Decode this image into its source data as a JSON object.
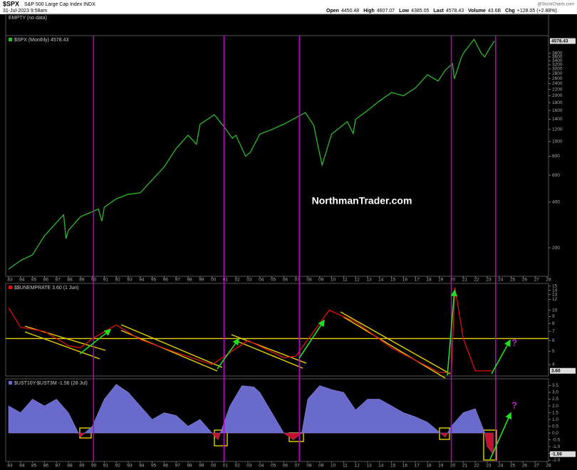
{
  "header": {
    "symbol": "$SPX",
    "name": "S&P 500 Large Cap Index INDX",
    "date": "31-Jul-2023 9:58am",
    "quote": [
      {
        "label": "Open",
        "value": "4450.48"
      },
      {
        "label": "High",
        "value": "4607.07"
      },
      {
        "label": "Low",
        "value": "4385.05"
      },
      {
        "label": "Last",
        "value": "4578.43"
      },
      {
        "label": "Volume",
        "value": "43.6B"
      },
      {
        "label": "Chg",
        "value": "+128.05 (+2.88%)"
      }
    ],
    "source": "@StockCharts.com"
  },
  "empty_panel": "EMPTY (no data)",
  "watermark": "NorthmanTrader.com",
  "xlim": [
    1982.76,
    2028.12
  ],
  "event_lines": [
    1990.1,
    2001.0,
    2007.3,
    2020.0,
    2023.7
  ],
  "xticks": [
    {
      "value": 1983,
      "label": "83"
    },
    {
      "value": 1984,
      "label": "84"
    },
    {
      "value": 1985,
      "label": "85"
    },
    {
      "value": 1986,
      "label": "86"
    },
    {
      "value": 1987,
      "label": "87"
    },
    {
      "value": 1988,
      "label": "88"
    },
    {
      "value": 1989,
      "label": "89"
    },
    {
      "value": 1990,
      "label": "90"
    },
    {
      "value": 1991,
      "label": "91"
    },
    {
      "value": 1992,
      "label": "92"
    },
    {
      "value": 1993,
      "label": "93"
    },
    {
      "value": 1994,
      "label": "94"
    },
    {
      "value": 1995,
      "label": "95"
    },
    {
      "value": 1996,
      "label": "96"
    },
    {
      "value": 1997,
      "label": "97"
    },
    {
      "value": 1998,
      "label": "98"
    },
    {
      "value": 1999,
      "label": "99"
    },
    {
      "value": 2000,
      "label": "00"
    },
    {
      "value": 2001,
      "label": "01"
    },
    {
      "value": 2002,
      "label": "02"
    },
    {
      "value": 2003,
      "label": "03"
    },
    {
      "value": 2004,
      "label": "04"
    },
    {
      "value": 2005,
      "label": "05"
    },
    {
      "value": 2006,
      "label": "06"
    },
    {
      "value": 2007,
      "label": "07"
    },
    {
      "value": 2008,
      "label": "08"
    },
    {
      "value": 2009,
      "label": "09"
    },
    {
      "value": 2010,
      "label": "10"
    },
    {
      "value": 2011,
      "label": "11"
    },
    {
      "value": 2012,
      "label": "12"
    },
    {
      "value": 2013,
      "label": "13"
    },
    {
      "value": 2014,
      "label": "14"
    },
    {
      "value": 2015,
      "label": "15"
    },
    {
      "value": 2016,
      "label": "16"
    },
    {
      "value": 2017,
      "label": "17"
    },
    {
      "value": 2018,
      "label": "18"
    },
    {
      "value": 2019,
      "label": "19"
    },
    {
      "value": 2020,
      "label": "20"
    },
    {
      "value": 2021,
      "label": "21"
    },
    {
      "value": 2022,
      "label": "22"
    },
    {
      "value": 2023,
      "label": "23"
    },
    {
      "value": 2024,
      "label": "24"
    },
    {
      "value": 2025,
      "label": "25"
    },
    {
      "value": 2026,
      "label": "26"
    },
    {
      "value": 2027,
      "label": "27"
    },
    {
      "value": 2028,
      "label": "28"
    }
  ],
  "chart_data": [
    {
      "type": "line",
      "title": "$SPX (Monthly) 4578.43",
      "log_scale": true,
      "color": "#2eb82e",
      "x": [
        1983,
        1984,
        1985,
        1986,
        1987.6,
        1987.8,
        1988,
        1989,
        1990.5,
        1990.8,
        1991,
        1992,
        1993,
        1994,
        1995,
        1996,
        1997,
        1998,
        1998.7,
        1999,
        2000.2,
        2001,
        2001.7,
        2002,
        2002.8,
        2003.2,
        2004,
        2005,
        2006,
        2007.8,
        2008.5,
        2008.9,
        2009.2,
        2010,
        2011.3,
        2011.8,
        2012,
        2013,
        2014,
        2015,
        2016,
        2017,
        2018,
        2018.9,
        2019.5,
        2020.1,
        2020.25,
        2020.8,
        2021,
        2021.9,
        2022.5,
        2022.8,
        2023.2,
        2023.6
      ],
      "values": [
        145,
        165,
        180,
        240,
        330,
        230,
        260,
        320,
        360,
        300,
        370,
        420,
        450,
        460,
        560,
        680,
        900,
        1100,
        960,
        1300,
        1500,
        1250,
        1050,
        1100,
        800,
        850,
        1120,
        1200,
        1300,
        1550,
        1280,
        900,
        700,
        1120,
        1350,
        1130,
        1400,
        1600,
        1850,
        2100,
        2000,
        2250,
        2750,
        2500,
        2950,
        3250,
        2580,
        3500,
        3800,
        4700,
        3800,
        3600,
        4100,
        4578.43
      ],
      "ylim": [
        130,
        4970
      ],
      "yticks": [
        200,
        400,
        600,
        800,
        1000,
        1200,
        1400,
        1600,
        1800,
        2000,
        2200,
        2400,
        2600,
        2800,
        3000,
        3200,
        3400,
        3600,
        3800
      ],
      "last_value": 4578.43
    },
    {
      "type": "line",
      "title": "$$UNEMPRATE 3.60 (1 Jun)",
      "log_scale": true,
      "color": "#dd1111",
      "x": [
        1983,
        1984,
        1986,
        1988,
        1989,
        1990,
        1992,
        1994,
        1997,
        2000,
        2003,
        2006,
        2007,
        2009.8,
        2012,
        2015,
        2019,
        2020,
        2020.3,
        2021,
        2022,
        2023.4
      ],
      "values": [
        10.4,
        7.5,
        7.0,
        5.5,
        5.3,
        6.2,
        7.8,
        6.1,
        4.9,
        4.0,
        6.0,
        4.5,
        4.6,
        10.0,
        8.2,
        5.3,
        3.5,
        3.5,
        14.7,
        6.2,
        3.6,
        3.6
      ],
      "ylim": [
        3.3,
        15.7
      ],
      "yticks": [
        4,
        5,
        6,
        7,
        8,
        9,
        10,
        12,
        13,
        14,
        15
      ],
      "reference_line": 6.2,
      "reference_color": "#e6d200",
      "last_value": {
        "value": 3.6,
        "label": "3.60"
      },
      "annotation": "?"
    },
    {
      "type": "area",
      "title": "$UST10Y-$UST3M -1.56 (28 Jul)",
      "log_scale": false,
      "color": "#6a6acc",
      "negative_color": "#c8102e",
      "x": [
        1983,
        1984,
        1985,
        1986,
        1987,
        1988,
        1989,
        1990,
        1991,
        1992,
        1993,
        1994,
        1995,
        1996,
        1997,
        1998,
        1999,
        2000.5,
        2001.5,
        2002.5,
        2003.5,
        2004,
        2005,
        2006,
        2006.8,
        2007.5,
        2008,
        2009,
        2010,
        2011,
        2012,
        2013,
        2014,
        2015,
        2016,
        2017,
        2018,
        2019.5,
        2020,
        2021,
        2022,
        2022.8,
        2023,
        2023.5
      ],
      "values": [
        2.0,
        1.5,
        2.5,
        2.0,
        2.5,
        1.5,
        -0.3,
        0.5,
        2.5,
        3.6,
        3.0,
        2.0,
        1.0,
        1.5,
        1.3,
        0.5,
        1.0,
        -0.5,
        2.0,
        3.5,
        3.4,
        3.0,
        1.5,
        0.0,
        -0.5,
        0.0,
        2.5,
        3.5,
        3.2,
        3.0,
        1.7,
        2.5,
        2.5,
        2.0,
        1.5,
        1.2,
        0.8,
        -0.3,
        0.5,
        1.5,
        1.8,
        0.0,
        -1.0,
        -1.56
      ],
      "ylim": [
        -2.1,
        4.0
      ],
      "yticks": [
        {
          "value": -2,
          "label": "-2.0"
        },
        -1.5,
        {
          "value": -1,
          "label": "-1.0"
        },
        -0.5,
        {
          "value": 0,
          "label": "0.0"
        },
        0.5,
        {
          "value": 1,
          "label": "1.0"
        },
        1.5,
        {
          "value": 2,
          "label": "2.0"
        },
        2.5,
        {
          "value": 3,
          "label": "3.0"
        },
        3.5
      ],
      "last_value": -1.56,
      "annotation": "?"
    }
  ]
}
